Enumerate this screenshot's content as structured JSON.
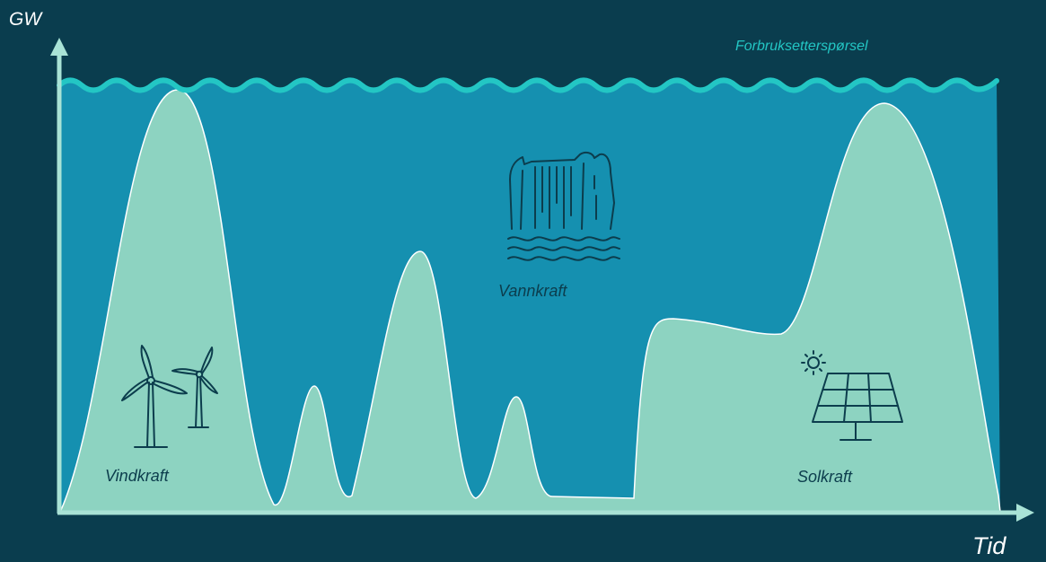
{
  "axes": {
    "y_label": "GW",
    "x_label": "Tid"
  },
  "labels": {
    "demand": "Forbruksetterspørsel",
    "wind": "Vindkraft",
    "hydro": "Vannkraft",
    "solar": "Solkraft"
  },
  "icons": {
    "wind": "wind-turbines-icon",
    "hydro": "waterfall-dam-icon",
    "solar": "solar-panel-icon"
  },
  "colors": {
    "background": "#0a3d4e",
    "hydro_fill": "#1590b0",
    "renewables_fill": "#8dd3c1",
    "demand_line": "#23c6c4",
    "axis": "#a9e3d6",
    "label_dark": "#0c3d4d",
    "label_light": "#ffffff"
  }
}
